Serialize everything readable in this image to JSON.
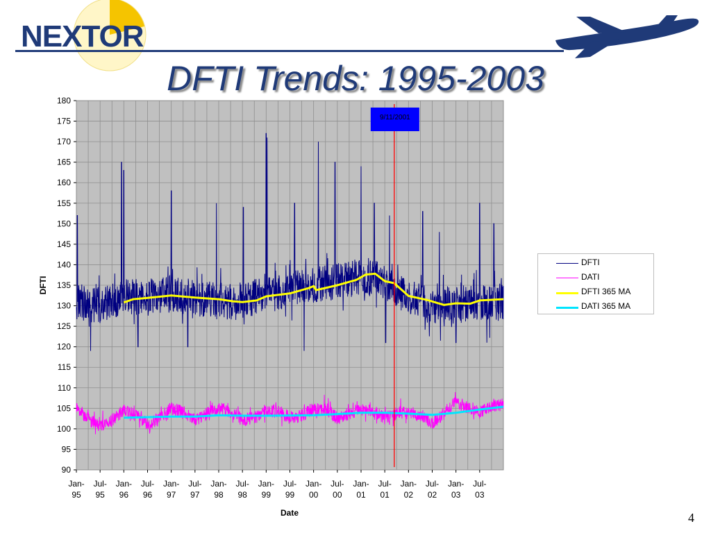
{
  "slide": {
    "logo_text": "NEXTOR",
    "title": "DFTI Trends: 1995-2003",
    "page_number": "4",
    "colors": {
      "brand": "#1f3a78",
      "sun": "#f5c400"
    }
  },
  "chart_data": {
    "type": "line",
    "title": "",
    "xlabel": "Date",
    "ylabel": "DFTI",
    "ylim": [
      90,
      180
    ],
    "yticks": [
      "180",
      "175",
      "170",
      "165",
      "160",
      "155",
      "150",
      "145",
      "140",
      "135",
      "130",
      "125",
      "120",
      "115",
      "110",
      "105",
      "100",
      "95",
      "90"
    ],
    "xticks": [
      {
        "line1": "Jan-",
        "line2": "95",
        "x": 1995.0
      },
      {
        "line1": "Jul-",
        "line2": "95",
        "x": 1995.5
      },
      {
        "line1": "Jan-",
        "line2": "96",
        "x": 1996.0
      },
      {
        "line1": "Jul-",
        "line2": "96",
        "x": 1996.5
      },
      {
        "line1": "Jan-",
        "line2": "97",
        "x": 1997.0
      },
      {
        "line1": "Jul-",
        "line2": "97",
        "x": 1997.5
      },
      {
        "line1": "Jan-",
        "line2": "98",
        "x": 1998.0
      },
      {
        "line1": "Jul-",
        "line2": "98",
        "x": 1998.5
      },
      {
        "line1": "Jan-",
        "line2": "99",
        "x": 1999.0
      },
      {
        "line1": "Jul-",
        "line2": "99",
        "x": 1999.5
      },
      {
        "line1": "Jan-",
        "line2": "00",
        "x": 2000.0
      },
      {
        "line1": "Jul-",
        "line2": "00",
        "x": 2000.5
      },
      {
        "line1": "Jan-",
        "line2": "01",
        "x": 2001.0
      },
      {
        "line1": "Jul-",
        "line2": "01",
        "x": 2001.5
      },
      {
        "line1": "Jan-",
        "line2": "02",
        "x": 2002.0
      },
      {
        "line1": "Jul-",
        "line2": "02",
        "x": 2002.5
      },
      {
        "line1": "Jan-",
        "line2": "03",
        "x": 2003.0
      },
      {
        "line1": "Jul-",
        "line2": "03",
        "x": 2003.5
      }
    ],
    "xlim": [
      1995.0,
      2004.0
    ],
    "grid": true,
    "plot_background": "#c0c0c0",
    "legend_position": "right",
    "series": [
      {
        "name": "DFTI",
        "color": "#000080",
        "style": "noisy",
        "base": [
          [
            1995.0,
            131
          ],
          [
            1995.5,
            130
          ],
          [
            1996.0,
            132
          ],
          [
            1996.5,
            132
          ],
          [
            1997.0,
            133
          ],
          [
            1997.5,
            132
          ],
          [
            1998.0,
            131
          ],
          [
            1998.5,
            131
          ],
          [
            1999.0,
            133
          ],
          [
            1999.5,
            134
          ],
          [
            2000.0,
            135
          ],
          [
            2000.5,
            136
          ],
          [
            2001.0,
            137
          ],
          [
            2001.5,
            136
          ],
          [
            2002.0,
            132
          ],
          [
            2002.5,
            130
          ],
          [
            2003.0,
            130
          ],
          [
            2003.5,
            131
          ],
          [
            2004.0,
            131
          ]
        ],
        "amplitude": 4.5,
        "peaks": [
          [
            1995.02,
            152
          ],
          [
            1995.95,
            165
          ],
          [
            1996.0,
            163
          ],
          [
            1997.0,
            158
          ],
          [
            1997.95,
            155
          ],
          [
            1998.52,
            154
          ],
          [
            1999.0,
            172
          ],
          [
            1999.02,
            171
          ],
          [
            1999.6,
            155
          ],
          [
            2000.1,
            170
          ],
          [
            2000.45,
            165
          ],
          [
            2001.0,
            164
          ],
          [
            2001.28,
            155
          ],
          [
            2001.6,
            152
          ],
          [
            2002.3,
            153
          ],
          [
            2002.65,
            148
          ],
          [
            2003.5,
            155
          ],
          [
            2003.8,
            150
          ]
        ],
        "troughs": [
          [
            1995.3,
            119
          ],
          [
            1996.3,
            120
          ],
          [
            1997.35,
            120
          ],
          [
            1999.8,
            119
          ],
          [
            2001.52,
            121
          ],
          [
            2003.0,
            121
          ],
          [
            2003.65,
            121
          ]
        ]
      },
      {
        "name": "DATI",
        "color": "#ff00ff",
        "style": "noisy",
        "base": [
          [
            1995.0,
            105
          ],
          [
            1995.3,
            102
          ],
          [
            1995.5,
            100.5
          ],
          [
            1995.8,
            102.5
          ],
          [
            1996.0,
            104.5
          ],
          [
            1996.3,
            103
          ],
          [
            1996.5,
            101
          ],
          [
            1996.8,
            103
          ],
          [
            1997.0,
            105
          ],
          [
            1997.3,
            104
          ],
          [
            1997.5,
            102
          ],
          [
            1997.8,
            104
          ],
          [
            1998.0,
            105
          ],
          [
            1998.3,
            104
          ],
          [
            1998.5,
            102
          ],
          [
            1998.8,
            103
          ],
          [
            1999.0,
            104.5
          ],
          [
            1999.3,
            104
          ],
          [
            1999.5,
            102.5
          ],
          [
            1999.8,
            103.5
          ],
          [
            2000.0,
            105
          ],
          [
            2000.3,
            104.5
          ],
          [
            2000.5,
            102.5
          ],
          [
            2000.8,
            104
          ],
          [
            2001.0,
            105
          ],
          [
            2001.3,
            104
          ],
          [
            2001.5,
            102.5
          ],
          [
            2001.8,
            104
          ],
          [
            2002.0,
            104
          ],
          [
            2002.3,
            103
          ],
          [
            2002.5,
            101.5
          ],
          [
            2002.8,
            104
          ],
          [
            2003.0,
            106.5
          ],
          [
            2003.3,
            105
          ],
          [
            2003.5,
            104
          ],
          [
            2003.8,
            105.5
          ],
          [
            2004.0,
            106
          ]
        ],
        "amplitude": 1.6,
        "peaks": [],
        "troughs": []
      },
      {
        "name": "DFTI 365 MA",
        "color": "#ffff00",
        "style": "smooth",
        "points": [
          [
            1996.0,
            130.8
          ],
          [
            1996.2,
            131.6
          ],
          [
            1996.5,
            131.9
          ],
          [
            1997.0,
            132.5
          ],
          [
            1997.5,
            132.0
          ],
          [
            1998.0,
            131.6
          ],
          [
            1998.3,
            131.1
          ],
          [
            1998.5,
            130.9
          ],
          [
            1998.8,
            131.3
          ],
          [
            1999.0,
            132.3
          ],
          [
            1999.5,
            133.0
          ],
          [
            1999.9,
            134.3
          ],
          [
            2000.0,
            134.8
          ],
          [
            2000.05,
            133.8
          ],
          [
            2000.5,
            135.0
          ],
          [
            2000.9,
            136.3
          ],
          [
            2001.1,
            137.6
          ],
          [
            2001.3,
            137.8
          ],
          [
            2001.5,
            136.0
          ],
          [
            2001.7,
            135.5
          ],
          [
            2002.0,
            132.4
          ],
          [
            2002.4,
            131.4
          ],
          [
            2002.6,
            130.7
          ],
          [
            2002.75,
            130.2
          ],
          [
            2003.0,
            130.6
          ],
          [
            2003.3,
            130.5
          ],
          [
            2003.5,
            131.3
          ],
          [
            2004.0,
            131.6
          ]
        ]
      },
      {
        "name": "DATI 365 MA",
        "color": "#00e5ff",
        "style": "smooth",
        "points": [
          [
            1996.0,
            102.7
          ],
          [
            1997.0,
            103.0
          ],
          [
            1997.5,
            103.0
          ],
          [
            1998.0,
            103.3
          ],
          [
            1998.5,
            103.2
          ],
          [
            1999.0,
            103.2
          ],
          [
            2000.0,
            103.3
          ],
          [
            2000.5,
            103.6
          ],
          [
            2001.0,
            103.9
          ],
          [
            2001.5,
            103.9
          ],
          [
            2002.0,
            103.7
          ],
          [
            2002.5,
            103.4
          ],
          [
            2003.0,
            103.9
          ],
          [
            2003.5,
            104.7
          ],
          [
            2004.0,
            105.4
          ]
        ]
      }
    ],
    "annotation": {
      "label": "9/11/2001",
      "x": 2001.7,
      "line_color": "#ff0000",
      "box_color": "#0000ff"
    }
  }
}
